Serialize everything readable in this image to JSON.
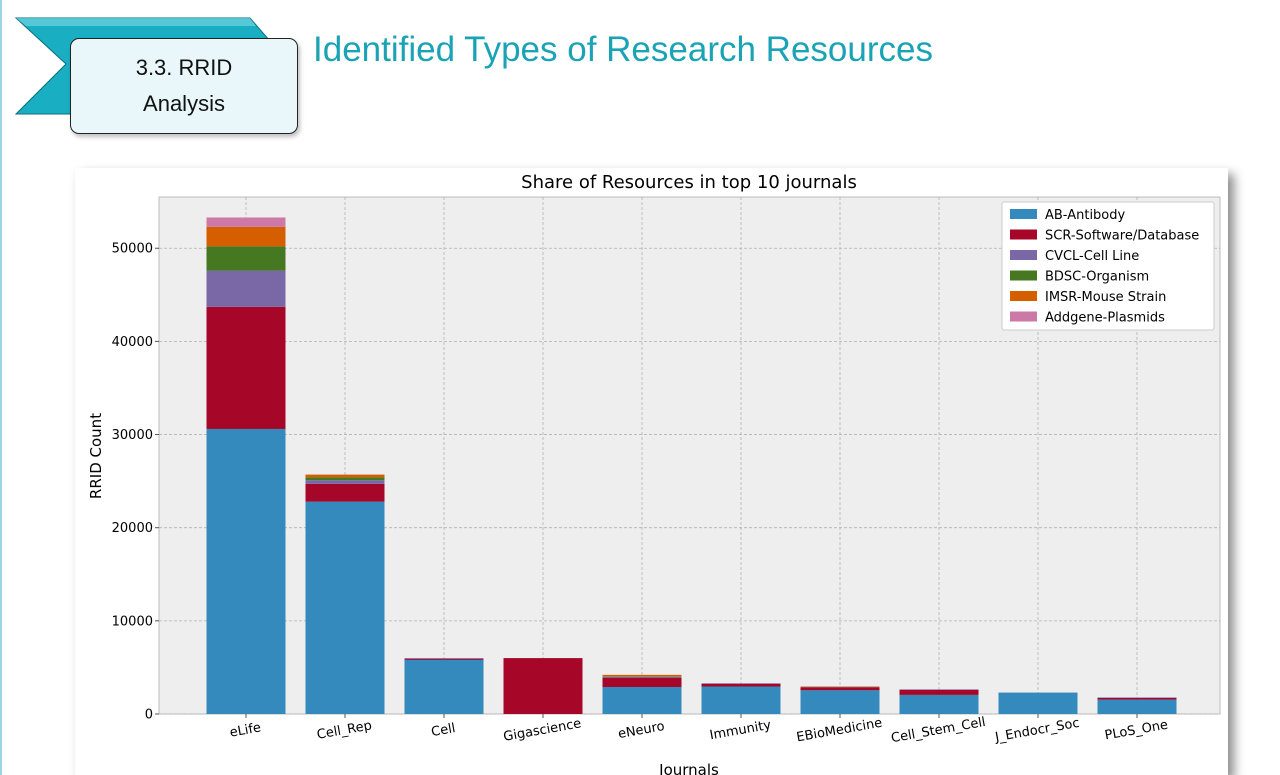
{
  "section_badge": {
    "line1": "3.3. RRID",
    "line2": "Analysis"
  },
  "slide_title": "Identified Types of Research Resources",
  "chart_data": {
    "type": "bar",
    "stacked": true,
    "title": "Share of Resources in top 10 journals",
    "xlabel": "Journals",
    "ylabel": "RRID Count",
    "ylim": [
      0,
      55500
    ],
    "yticks": [
      0,
      10000,
      20000,
      30000,
      40000,
      50000
    ],
    "yticklabels": [
      "0",
      "10000",
      "20000",
      "30000",
      "40000",
      "50000"
    ],
    "grid": true,
    "legend_position": "top-right",
    "categories": [
      "eLife",
      "Cell_Rep",
      "Cell",
      "Gigascience",
      "eNeuro",
      "Immunity",
      "EBioMedicine",
      "Cell_Stem_Cell",
      "J_Endocr_Soc",
      "PLoS_One"
    ],
    "series": [
      {
        "name": "AB-Antibody",
        "color": "#348abd",
        "values": [
          30600,
          22800,
          5800,
          0,
          2900,
          2950,
          2550,
          2050,
          2300,
          1550
        ]
      },
      {
        "name": "SCR-Software/Database",
        "color": "#a60628",
        "values": [
          13100,
          1900,
          100,
          6000,
          1000,
          300,
          300,
          550,
          0,
          200
        ]
      },
      {
        "name": "CVCL-Cell Line",
        "color": "#7a68a6",
        "values": [
          3900,
          400,
          100,
          0,
          100,
          50,
          50,
          50,
          0,
          20
        ]
      },
      {
        "name": "BDSC-Organism",
        "color": "#467821",
        "values": [
          2600,
          300,
          0,
          0,
          50,
          0,
          0,
          0,
          0,
          0
        ]
      },
      {
        "name": "IMSR-Mouse Strain",
        "color": "#d55e00",
        "values": [
          2100,
          300,
          0,
          0,
          150,
          0,
          50,
          0,
          0,
          0
        ]
      },
      {
        "name": "Addgene-Plasmids",
        "color": "#cc79a7",
        "values": [
          1000,
          0,
          0,
          0,
          0,
          0,
          0,
          0,
          0,
          0
        ]
      }
    ]
  }
}
